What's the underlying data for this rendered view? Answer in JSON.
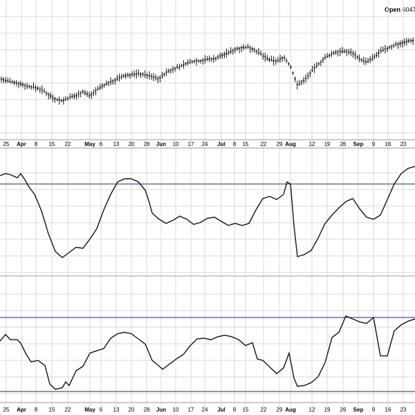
{
  "header": {
    "open_label": "Open",
    "open_value": "6047."
  },
  "chart_data": [
    {
      "type": "ohlc-bar",
      "panel": "price",
      "x_ticks": [
        {
          "label": "25",
          "month": false
        },
        {
          "label": "Apr",
          "month": true
        },
        {
          "label": "8",
          "month": false
        },
        {
          "label": "15",
          "month": false
        },
        {
          "label": "22",
          "month": false
        },
        {
          "label": "May",
          "month": true
        },
        {
          "label": "6",
          "month": false
        },
        {
          "label": "13",
          "month": false
        },
        {
          "label": "20",
          "month": false
        },
        {
          "label": "28",
          "month": false
        },
        {
          "label": "Jun",
          "month": true
        },
        {
          "label": "10",
          "month": false
        },
        {
          "label": "17",
          "month": false
        },
        {
          "label": "24",
          "month": false
        },
        {
          "label": "Jul",
          "month": true
        },
        {
          "label": "8",
          "month": false
        },
        {
          "label": "15",
          "month": false
        },
        {
          "label": "22",
          "month": false
        },
        {
          "label": "29",
          "month": false
        },
        {
          "label": "Aug",
          "month": true
        },
        {
          "label": "12",
          "month": false
        },
        {
          "label": "19",
          "month": false
        },
        {
          "label": "26",
          "month": false
        },
        {
          "label": "Sep",
          "month": true
        },
        {
          "label": "9",
          "month": false
        },
        {
          "label": "16",
          "month": false
        },
        {
          "label": "23",
          "month": false
        }
      ],
      "y_range": [
        0,
        100
      ],
      "grid": true,
      "close_path": [
        [
          0,
          48
        ],
        [
          10,
          46
        ],
        [
          20,
          45
        ],
        [
          30,
          43
        ],
        [
          40,
          41
        ],
        [
          50,
          40
        ],
        [
          60,
          38
        ],
        [
          70,
          33
        ],
        [
          80,
          29
        ],
        [
          90,
          27
        ],
        [
          100,
          30
        ],
        [
          110,
          32
        ],
        [
          120,
          36
        ],
        [
          130,
          32
        ],
        [
          140,
          38
        ],
        [
          150,
          42
        ],
        [
          160,
          45
        ],
        [
          170,
          48
        ],
        [
          180,
          51
        ],
        [
          190,
          52
        ],
        [
          200,
          53
        ],
        [
          210,
          52
        ],
        [
          220,
          50
        ],
        [
          230,
          48
        ],
        [
          240,
          54
        ],
        [
          250,
          57
        ],
        [
          260,
          60
        ],
        [
          270,
          63
        ],
        [
          280,
          65
        ],
        [
          290,
          65
        ],
        [
          300,
          67
        ],
        [
          310,
          67
        ],
        [
          320,
          70
        ],
        [
          330,
          73
        ],
        [
          340,
          76
        ],
        [
          350,
          78
        ],
        [
          360,
          78
        ],
        [
          370,
          75
        ],
        [
          380,
          70
        ],
        [
          390,
          66
        ],
        [
          400,
          65
        ],
        [
          410,
          69
        ],
        [
          420,
          60
        ],
        [
          430,
          42
        ],
        [
          440,
          47
        ],
        [
          450,
          55
        ],
        [
          460,
          62
        ],
        [
          470,
          68
        ],
        [
          480,
          72
        ],
        [
          490,
          74
        ],
        [
          500,
          74
        ],
        [
          510,
          73
        ],
        [
          520,
          67
        ],
        [
          530,
          64
        ],
        [
          540,
          68
        ],
        [
          550,
          74
        ],
        [
          560,
          77
        ],
        [
          570,
          80
        ],
        [
          580,
          82
        ],
        [
          590,
          84
        ],
        [
          600,
          85
        ]
      ]
    },
    {
      "type": "line",
      "panel": "indicator-1",
      "y_range": [
        0,
        100
      ],
      "reference_line": 80,
      "x": [
        0,
        8,
        15,
        25,
        30,
        36,
        42,
        50,
        60,
        70,
        80,
        90,
        100,
        110,
        120,
        130,
        140,
        150,
        160,
        170,
        180,
        190,
        200,
        210,
        215,
        220,
        230,
        240,
        250,
        260,
        270,
        280,
        290,
        300,
        310,
        320,
        330,
        340,
        350,
        360,
        370,
        380,
        390,
        400,
        410,
        415,
        420,
        425,
        430,
        440,
        450,
        460,
        470,
        480,
        490,
        500,
        510,
        520,
        530,
        540,
        550,
        560,
        570,
        580,
        590,
        600
      ],
      "y": [
        88,
        90,
        89,
        86,
        90,
        84,
        77,
        70,
        54,
        32,
        15,
        9,
        14,
        19,
        18,
        27,
        37,
        55,
        70,
        82,
        85,
        85,
        82,
        74,
        64,
        52,
        46,
        42,
        45,
        49,
        46,
        41,
        43,
        47,
        48,
        44,
        40,
        42,
        40,
        42,
        55,
        66,
        68,
        65,
        70,
        82,
        80,
        40,
        10,
        12,
        16,
        28,
        42,
        50,
        57,
        63,
        66,
        56,
        48,
        46,
        50,
        65,
        80,
        90,
        95,
        97
      ]
    },
    {
      "type": "line",
      "panel": "indicator-2",
      "y_range": [
        0,
        100
      ],
      "reference_lines": [
        100,
        0
      ],
      "x": [
        0,
        8,
        15,
        25,
        30,
        38,
        45,
        55,
        65,
        72,
        80,
        90,
        95,
        100,
        110,
        120,
        130,
        140,
        150,
        160,
        170,
        180,
        190,
        200,
        210,
        220,
        228,
        235,
        245,
        255,
        265,
        275,
        285,
        295,
        305,
        315,
        325,
        335,
        345,
        355,
        365,
        372,
        380,
        390,
        400,
        410,
        418,
        425,
        430,
        440,
        450,
        460,
        470,
        480,
        490,
        500,
        510,
        520,
        530,
        540,
        550,
        560,
        570,
        580,
        590,
        600
      ],
      "y": [
        68,
        77,
        70,
        70,
        65,
        50,
        40,
        42,
        35,
        10,
        3,
        5,
        13,
        8,
        28,
        34,
        52,
        55,
        58,
        72,
        78,
        80,
        78,
        71,
        64,
        42,
        36,
        30,
        37,
        44,
        50,
        62,
        71,
        72,
        70,
        74,
        76,
        74,
        70,
        62,
        66,
        44,
        42,
        33,
        24,
        32,
        52,
        18,
        7,
        8,
        12,
        20,
        39,
        73,
        80,
        102,
        98,
        94,
        92,
        100,
        48,
        48,
        82,
        90,
        95,
        98
      ]
    }
  ]
}
